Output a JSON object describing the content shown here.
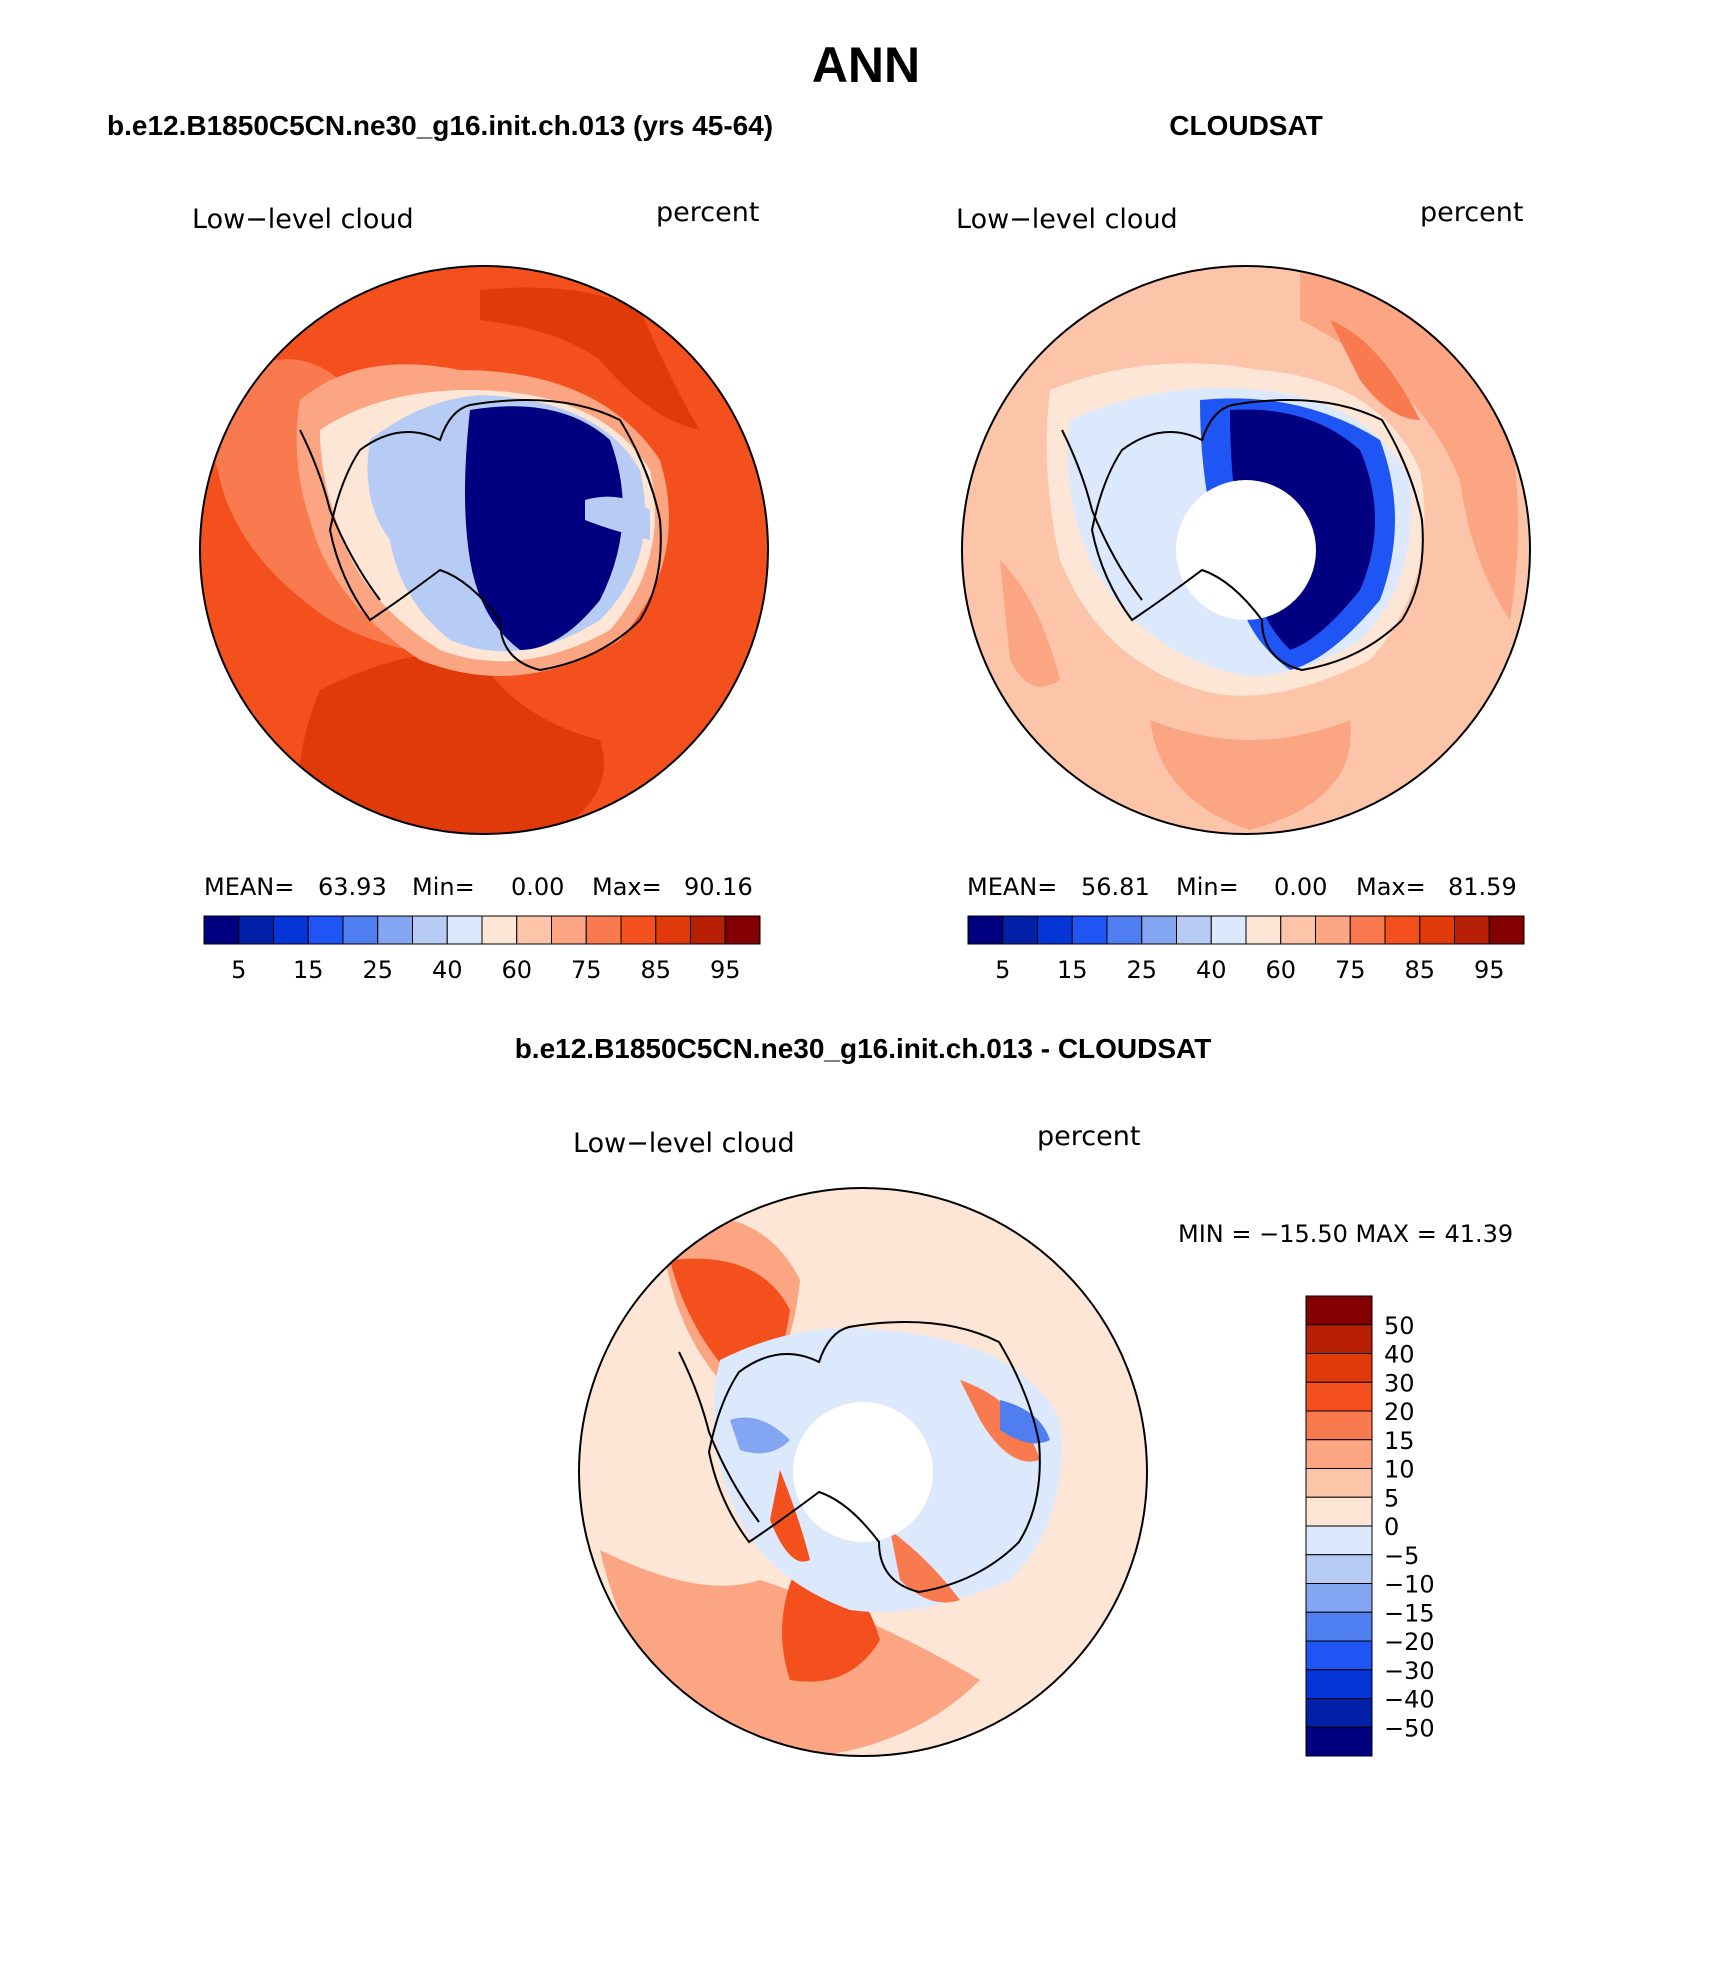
{
  "page_title": "ANN",
  "panels": [
    {
      "header": "b.e12.B1850C5CN.ne30_g16.init.ch.013 (yrs 45-64)",
      "variable": "Low−level cloud",
      "units": "percent",
      "stats": {
        "mean_label": "MEAN=",
        "mean": "63.93",
        "min_label": "Min=",
        "min": "0.00",
        "max_label": "Max=",
        "max": "90.16"
      }
    },
    {
      "header": "CLOUDSAT",
      "variable": "Low−level cloud",
      "units": "percent",
      "stats": {
        "mean_label": "MEAN=",
        "mean": "56.81",
        "min_label": "Min=",
        "min": "0.00",
        "max_label": "Max=",
        "max": "81.59"
      }
    },
    {
      "header": "b.e12.B1850C5CN.ne30_g16.init.ch.013 - CLOUDSAT",
      "variable": "Low−level cloud",
      "units": "percent",
      "minmax": "MIN = −15.50 MAX =   41.39"
    }
  ],
  "abs_colorbar": {
    "colors": [
      "#000080",
      "#0020a8",
      "#0535d6",
      "#1f55f5",
      "#4e7ef0",
      "#84a6f2",
      "#b7ccf5",
      "#dce8fb",
      "#fde6d5",
      "#fcc5aa",
      "#fba583",
      "#fa7a50",
      "#f4501e",
      "#e03a0a",
      "#b82006",
      "#820000"
    ],
    "ticks": [
      "5",
      "15",
      "25",
      "40",
      "60",
      "75",
      "85",
      "95"
    ]
  },
  "diff_colorbar": {
    "colors": [
      "#820000",
      "#b82006",
      "#e03a0a",
      "#f4501e",
      "#fa7a50",
      "#fba583",
      "#fcc5aa",
      "#fde6d5",
      "#dce8fb",
      "#b7ccf5",
      "#84a6f2",
      "#4e7ef0",
      "#1f55f5",
      "#0535d6",
      "#0020a8",
      "#000080"
    ],
    "ticks": [
      "50",
      "40",
      "30",
      "20",
      "15",
      "10",
      "5",
      "0",
      "−5",
      "−10",
      "−15",
      "−20",
      "−30",
      "−40",
      "−50"
    ]
  },
  "map_colors": {
    "deep_red": "#e03a0a",
    "red": "#f4501e",
    "orange": "#fa7a50",
    "salmon": "#fba583",
    "peach": "#fcc5aa",
    "cream": "#fde6d5",
    "pale_blue": "#dce8fb",
    "light_blue": "#b7ccf5",
    "mid_blue": "#84a6f2",
    "blue": "#1f55f5",
    "dark_blue": "#000080"
  }
}
